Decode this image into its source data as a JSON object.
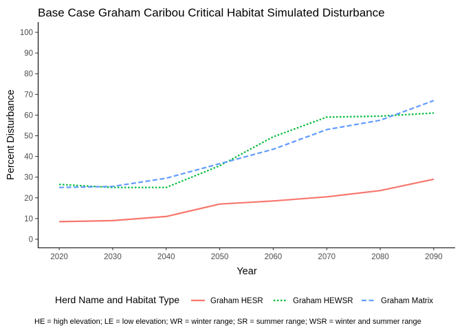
{
  "chart_data": {
    "type": "line",
    "title": "Base Case Graham Caribou Critical Habitat Simulated Disturbance",
    "xlabel": "Year",
    "ylabel": "Percent Disturbance",
    "x": [
      2020,
      2030,
      2040,
      2050,
      2060,
      2070,
      2080,
      2090
    ],
    "x_ticks": [
      "2020",
      "2030",
      "2040",
      "2050",
      "2060",
      "2070",
      "2080",
      "2090"
    ],
    "y_ticks": [
      "0",
      "10",
      "20",
      "30",
      "40",
      "50",
      "60",
      "70",
      "80",
      "90",
      "100"
    ],
    "xlim": [
      2016,
      2094
    ],
    "ylim": [
      -4,
      105
    ],
    "grid": false,
    "legend_title": "Herd Name and Habitat Type",
    "legend_position": "bottom",
    "series": [
      {
        "name": "Graham HESR",
        "color": "#F8766D",
        "dash": "solid",
        "values": [
          8.5,
          9,
          11,
          17,
          18.5,
          20.5,
          23.5,
          29
        ]
      },
      {
        "name": "Graham HEWSR",
        "color": "#00BA38",
        "dash": "dotted",
        "values": [
          26.5,
          25,
          25,
          35.5,
          49.5,
          59,
          59.5,
          61
        ]
      },
      {
        "name": "Graham Matrix",
        "color": "#619CFF",
        "dash": "dashed",
        "values": [
          25,
          25.5,
          29.5,
          36.5,
          43.5,
          53,
          57.5,
          67
        ]
      }
    ],
    "caption": "HE = high elevation; LE = low elevation; WR  = winter range; SR = summer range; WSR = winter and summer range"
  }
}
